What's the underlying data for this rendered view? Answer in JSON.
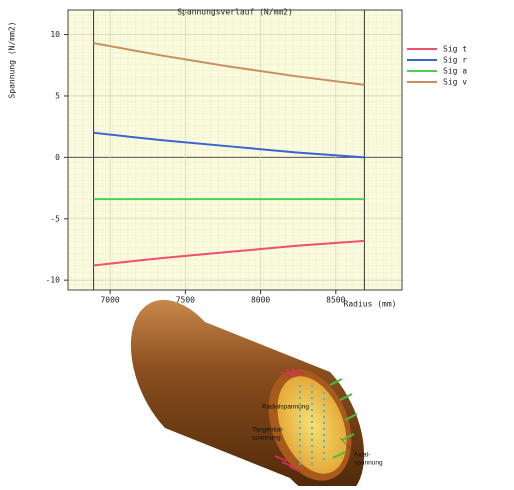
{
  "chart_data": {
    "type": "line",
    "title": "Spannungsverlauf (N/mm2)",
    "y_label": "Spannung (N/mm2)",
    "x_label": "Radius (mm)",
    "x": [
      6890,
      7340,
      7790,
      8240,
      8690
    ],
    "series": [
      {
        "name": "Sig t",
        "color": "#f0506e",
        "values": [
          -8.8,
          -8.2,
          -7.7,
          -7.2,
          -6.8
        ]
      },
      {
        "name": "Sig r",
        "color": "#3a64d2",
        "values": [
          2.0,
          1.4,
          0.9,
          0.4,
          0.0
        ]
      },
      {
        "name": "Sig a",
        "color": "#50d050",
        "values": [
          -3.4,
          -3.4,
          -3.4,
          -3.4,
          -3.4
        ]
      },
      {
        "name": "Sig v",
        "color": "#c8905e",
        "values": [
          9.3,
          8.3,
          7.4,
          6.6,
          5.9
        ]
      }
    ],
    "xlim": [
      6720,
      8940
    ],
    "ylim": [
      -10.8,
      12
    ],
    "xticks": [
      7000,
      7500,
      8000,
      8500
    ],
    "yticks": [
      -10,
      -5,
      0,
      5,
      10
    ],
    "vlines": [
      6890,
      8690
    ],
    "grid": true,
    "legend": "right"
  },
  "illustration": {
    "labels": [
      [
        "Radialspannung"
      ],
      [
        "Tangential-",
        "spannung"
      ],
      [
        "Axial-",
        "spannung"
      ]
    ]
  }
}
